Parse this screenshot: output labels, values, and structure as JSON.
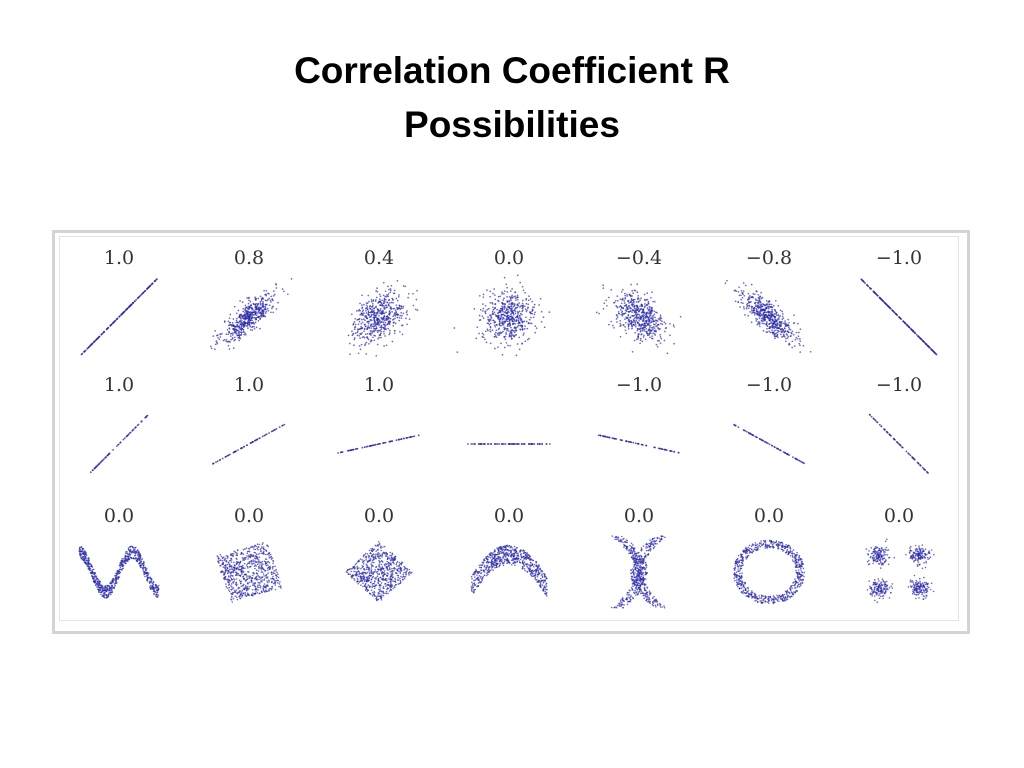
{
  "slide": {
    "title_line1": "Correlation Coefficient R",
    "title_line2": "Possibilities"
  },
  "chart_data": {
    "type": "scatter",
    "point_color": "#2a2aa8",
    "rows": [
      {
        "panels": [
          {
            "label": "1.0",
            "pattern": "linear",
            "r": 1.0
          },
          {
            "label": "0.8",
            "pattern": "gaussian",
            "r": 0.8
          },
          {
            "label": "0.4",
            "pattern": "gaussian",
            "r": 0.4
          },
          {
            "label": "0.0",
            "pattern": "gaussian",
            "r": 0.0
          },
          {
            "label": "−0.4",
            "pattern": "gaussian",
            "r": -0.4
          },
          {
            "label": "−0.8",
            "pattern": "gaussian",
            "r": -0.8
          },
          {
            "label": "−1.0",
            "pattern": "linear",
            "r": -1.0
          }
        ]
      },
      {
        "panels": [
          {
            "label": "1.0",
            "pattern": "line",
            "slope": 1.0
          },
          {
            "label": "1.0",
            "pattern": "line",
            "slope": 0.55
          },
          {
            "label": "1.0",
            "pattern": "line",
            "slope": 0.22
          },
          {
            "label": "",
            "pattern": "line",
            "slope": 0.0
          },
          {
            "label": "−1.0",
            "pattern": "line",
            "slope": -0.22
          },
          {
            "label": "−1.0",
            "pattern": "line",
            "slope": -0.55
          },
          {
            "label": "−1.0",
            "pattern": "line",
            "slope": -1.0
          }
        ]
      },
      {
        "panels": [
          {
            "label": "0.0",
            "pattern": "wave"
          },
          {
            "label": "0.0",
            "pattern": "rotated-square"
          },
          {
            "label": "0.0",
            "pattern": "diamond"
          },
          {
            "label": "0.0",
            "pattern": "parabola"
          },
          {
            "label": "0.0",
            "pattern": "x-shape"
          },
          {
            "label": "0.0",
            "pattern": "ring"
          },
          {
            "label": "0.0",
            "pattern": "four-clusters"
          }
        ]
      }
    ]
  }
}
